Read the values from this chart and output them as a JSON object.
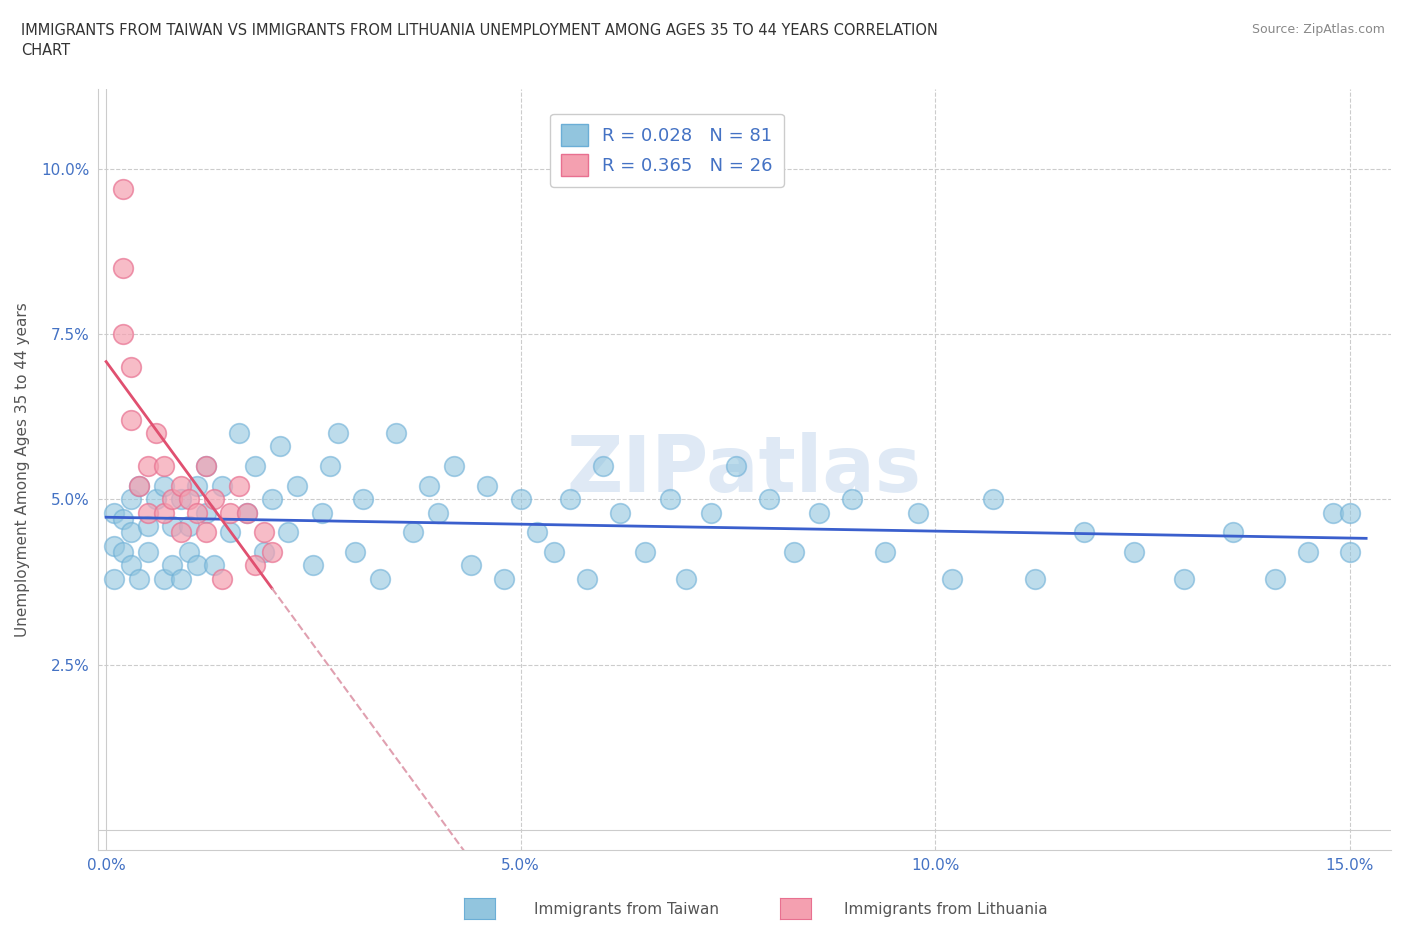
{
  "title": "IMMIGRANTS FROM TAIWAN VS IMMIGRANTS FROM LITHUANIA UNEMPLOYMENT AMONG AGES 35 TO 44 YEARS CORRELATION\nCHART",
  "source": "Source: ZipAtlas.com",
  "ylabel": "Unemployment Among Ages 35 to 44 years",
  "xlim": [
    -0.001,
    0.155
  ],
  "ylim": [
    -0.003,
    0.112
  ],
  "xticks": [
    0.0,
    0.05,
    0.1,
    0.15
  ],
  "yticks": [
    0.025,
    0.05,
    0.075,
    0.1
  ],
  "taiwan_color": "#92C5DE",
  "taiwan_edge_color": "#6BAED6",
  "lithuania_color": "#F4A0B0",
  "lithuania_edge_color": "#E87090",
  "taiwan_line_color": "#3A5FCD",
  "lithuania_line_color": "#E05070",
  "lithuania_dash_color": "#E0A0B0",
  "taiwan_R": 0.028,
  "taiwan_N": 81,
  "lithuania_R": 0.365,
  "lithuania_N": 26,
  "legend_color": "#4472C4",
  "watermark": "ZIPatlas",
  "tw_x": [
    0.001,
    0.001,
    0.001,
    0.002,
    0.002,
    0.003,
    0.003,
    0.003,
    0.004,
    0.004,
    0.005,
    0.005,
    0.006,
    0.007,
    0.007,
    0.008,
    0.008,
    0.009,
    0.009,
    0.01,
    0.01,
    0.011,
    0.011,
    0.012,
    0.012,
    0.013,
    0.014,
    0.015,
    0.016,
    0.017,
    0.018,
    0.019,
    0.02,
    0.021,
    0.022,
    0.023,
    0.025,
    0.026,
    0.027,
    0.028,
    0.03,
    0.031,
    0.033,
    0.035,
    0.037,
    0.039,
    0.04,
    0.042,
    0.044,
    0.046,
    0.048,
    0.05,
    0.052,
    0.054,
    0.056,
    0.058,
    0.06,
    0.062,
    0.065,
    0.068,
    0.07,
    0.073,
    0.076,
    0.08,
    0.083,
    0.086,
    0.09,
    0.094,
    0.098,
    0.102,
    0.107,
    0.112,
    0.118,
    0.124,
    0.13,
    0.136,
    0.141,
    0.145,
    0.148,
    0.15,
    0.15
  ],
  "tw_y": [
    0.038,
    0.043,
    0.048,
    0.042,
    0.047,
    0.04,
    0.045,
    0.05,
    0.038,
    0.052,
    0.042,
    0.046,
    0.05,
    0.038,
    0.052,
    0.04,
    0.046,
    0.038,
    0.05,
    0.042,
    0.046,
    0.04,
    0.052,
    0.048,
    0.055,
    0.04,
    0.052,
    0.045,
    0.06,
    0.048,
    0.055,
    0.042,
    0.05,
    0.058,
    0.045,
    0.052,
    0.04,
    0.048,
    0.055,
    0.06,
    0.042,
    0.05,
    0.038,
    0.06,
    0.045,
    0.052,
    0.048,
    0.055,
    0.04,
    0.052,
    0.038,
    0.05,
    0.045,
    0.042,
    0.05,
    0.038,
    0.055,
    0.048,
    0.042,
    0.05,
    0.038,
    0.048,
    0.055,
    0.05,
    0.042,
    0.048,
    0.05,
    0.042,
    0.048,
    0.038,
    0.05,
    0.038,
    0.045,
    0.042,
    0.038,
    0.045,
    0.038,
    0.042,
    0.048,
    0.042,
    0.048
  ],
  "lt_x": [
    0.002,
    0.002,
    0.002,
    0.003,
    0.003,
    0.004,
    0.005,
    0.005,
    0.006,
    0.007,
    0.007,
    0.008,
    0.009,
    0.009,
    0.01,
    0.011,
    0.012,
    0.012,
    0.013,
    0.014,
    0.015,
    0.016,
    0.017,
    0.018,
    0.019,
    0.02
  ],
  "lt_y": [
    0.097,
    0.085,
    0.075,
    0.062,
    0.07,
    0.052,
    0.048,
    0.055,
    0.06,
    0.048,
    0.055,
    0.05,
    0.045,
    0.052,
    0.05,
    0.048,
    0.055,
    0.045,
    0.05,
    0.038,
    0.048,
    0.052,
    0.048,
    0.04,
    0.045,
    0.042
  ]
}
